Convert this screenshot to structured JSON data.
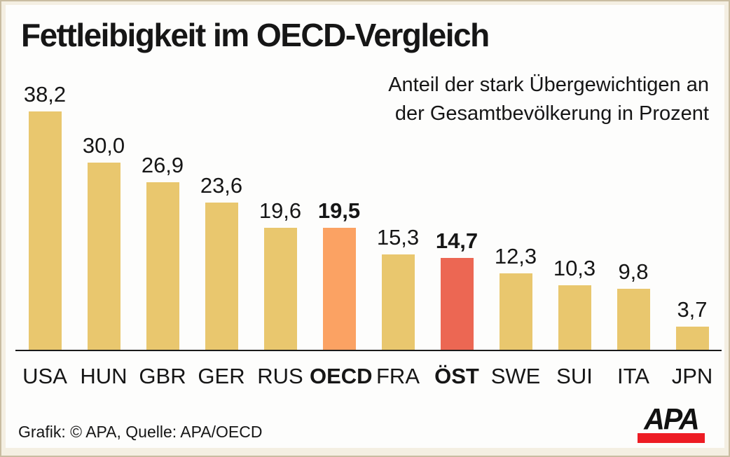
{
  "title": "Fettleibigkeit im OECD-Vergleich",
  "subtitle": {
    "line1": "Anteil der stark Übergewichtigen an",
    "line2": "der Gesamtbevölkerung in Prozent"
  },
  "footer": {
    "credit": "Grafik: © APA, Quelle: APA/OECD"
  },
  "logo": {
    "text": "APA",
    "bar_color": "#ed1c24"
  },
  "colors": {
    "bar_default": "#e9c76e",
    "bar_oecd": "#fba263",
    "bar_austria": "#ec6753",
    "frame_background": "#f4efe2",
    "frame_border": "#c9bda1",
    "plot_background": "#fdfdfc",
    "axis": "#1a1a1a",
    "text": "#161616"
  },
  "chart_data": {
    "type": "bar",
    "title": "Fettleibigkeit im OECD-Vergleich",
    "subtitle": "Anteil der stark Übergewichtigen an der Gesamtbevölkerung in Prozent",
    "categories": [
      "USA",
      "HUN",
      "GBR",
      "GER",
      "RUS",
      "OECD",
      "FRA",
      "ÖST",
      "SWE",
      "SUI",
      "ITA",
      "JPN"
    ],
    "values": [
      38.2,
      30.0,
      26.9,
      23.6,
      19.6,
      19.5,
      15.3,
      14.7,
      12.3,
      10.3,
      9.8,
      3.7
    ],
    "value_labels": [
      "38,2",
      "30,0",
      "26,9",
      "23,6",
      "19,6",
      "19,5",
      "15,3",
      "14,7",
      "12,3",
      "10,3",
      "9,8",
      "3,7"
    ],
    "color_keys": [
      "default",
      "default",
      "default",
      "default",
      "default",
      "oecd",
      "default",
      "austria",
      "default",
      "default",
      "default",
      "default"
    ],
    "emphasized_categories": [
      "OECD",
      "ÖST"
    ],
    "xlabel": "",
    "ylabel": "",
    "ylim": [
      0,
      40
    ],
    "grid": false,
    "legend": false,
    "unit": "Prozent"
  }
}
